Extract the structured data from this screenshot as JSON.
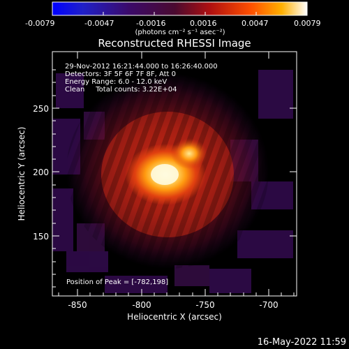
{
  "colorbar": {
    "ticks": [
      "-0.0079",
      "-0.0047",
      "-0.0016",
      "0.0016",
      "0.0047",
      "0.0079"
    ],
    "unit_label": "(photons cm⁻² s⁻¹ asec⁻²)"
  },
  "title": "Reconstructed RHESSI Image",
  "info": {
    "line1": "29-Nov-2012 16:21:44.000 to 16:26:40.000",
    "line2": "Detectors: 3F 5F 6F 7F 8F, Att 0",
    "line3": "Energy Range: 6.0 - 12.0 keV",
    "line4": "Clean     Total counts: 3.22E+04"
  },
  "peak_label": "Position of Peak = [-782,198]",
  "axes": {
    "xlabel": "Heliocentric X (arcsec)",
    "ylabel": "Heliocentric Y (arcsec)",
    "xticks": [
      "-850",
      "-800",
      "-750",
      "-700"
    ],
    "yticks": [
      "250",
      "200",
      "150"
    ]
  },
  "timestamp": "16-May-2022 11:59"
}
